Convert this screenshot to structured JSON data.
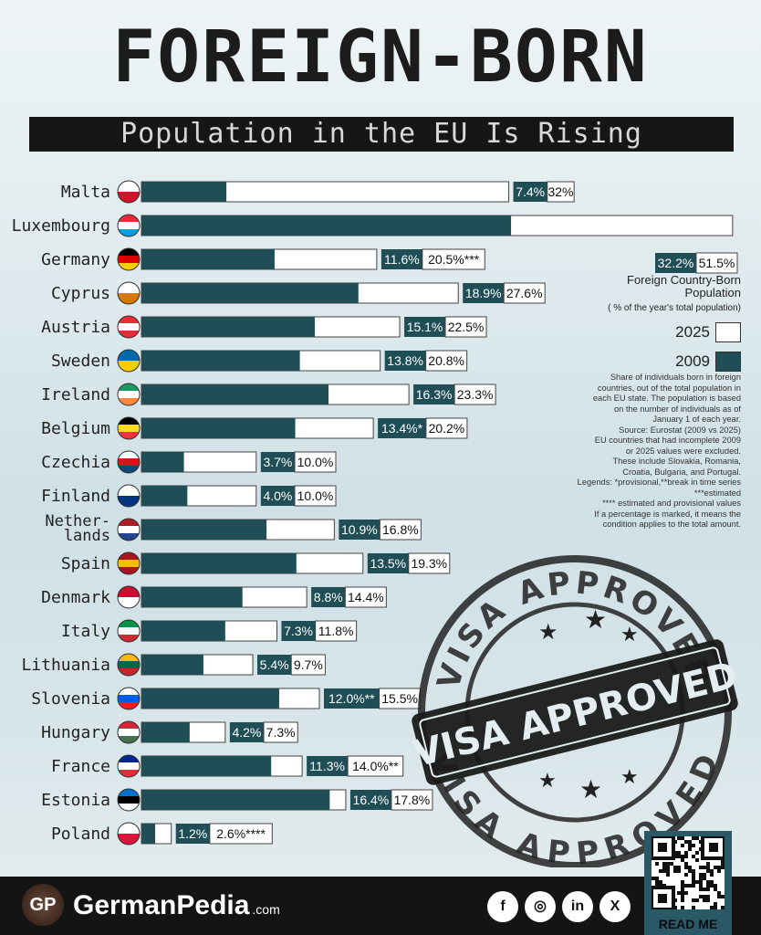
{
  "header": {
    "title": "FOREIGN-BORN",
    "subtitle": "Population in the EU Is Rising"
  },
  "chart_data": {
    "type": "bar",
    "orientation": "horizontal",
    "colors": {
      "2009": "#1f4e57",
      "2025": "#ffffff"
    },
    "categories": [
      "Malta",
      "Luxembourg",
      "Germany",
      "Cyprus",
      "Austria",
      "Sweden",
      "Ireland",
      "Belgium",
      "Czechia",
      "Finland",
      "Netherlands",
      "Spain",
      "Denmark",
      "Italy",
      "Lithuania",
      "Slovenia",
      "Hungary",
      "France",
      "Estonia",
      "Poland"
    ],
    "category_labels": [
      "Malta",
      "Luxembourg",
      "Germany",
      "Cyprus",
      "Austria",
      "Sweden",
      "Ireland",
      "Belgium",
      "Czechia",
      "Finland",
      "Nether-\nlands",
      "Spain",
      "Denmark",
      "Italy",
      "Lithuania",
      "Slovenia",
      "Hungary",
      "France",
      "Estonia",
      "Poland"
    ],
    "series": [
      {
        "name": "2009",
        "values": [
          7.4,
          32.2,
          11.6,
          18.9,
          15.1,
          13.8,
          16.3,
          13.4,
          3.7,
          4.0,
          10.9,
          13.5,
          8.8,
          7.3,
          5.4,
          12.0,
          4.2,
          11.3,
          16.4,
          1.2
        ]
      },
      {
        "name": "2025",
        "values": [
          32.0,
          51.5,
          20.5,
          27.6,
          22.5,
          20.8,
          23.3,
          20.2,
          10.0,
          10.0,
          16.8,
          19.3,
          14.4,
          11.8,
          9.7,
          15.5,
          7.3,
          14.0,
          17.8,
          2.6
        ]
      }
    ],
    "labels_2009": [
      "7.4%",
      "32.2%",
      "11.6%",
      "18.9%",
      "15.1%",
      "13.8%",
      "16.3%",
      "13.4%*",
      "3.7%",
      "4.0%",
      "10.9%",
      "13.5%",
      "8.8%",
      "7.3%",
      "5.4%",
      "12.0%**",
      "4.2%",
      "11.3%",
      "16.4%",
      "1.2%"
    ],
    "labels_2025": [
      "32%",
      "51.5%",
      "20.5%***",
      "27.6%",
      "22.5%",
      "20.8%",
      "23.3%",
      "20.2%",
      "10.0%",
      "10.0%",
      "16.8%",
      "19.3%",
      "14.4%",
      "11.8%",
      "9.7%",
      "15.5%",
      "7.3%",
      "14.0%**",
      "17.8%",
      "2.6%****"
    ],
    "flags": [
      [
        "#ffffff",
        "#cf142b"
      ],
      [
        "#ed2939",
        "#ffffff",
        "#00a1de"
      ],
      [
        "#000000",
        "#dd0000",
        "#ffce00"
      ],
      [
        "#ffffff",
        "#d57800"
      ],
      [
        "#ed2939",
        "#ffffff",
        "#ed2939"
      ],
      [
        "#006aa7",
        "#fecc00"
      ],
      [
        "#169b62",
        "#ffffff",
        "#ff883e"
      ],
      [
        "#000000",
        "#fdda24",
        "#ef3340"
      ],
      [
        "#ffffff",
        "#d7141a",
        "#11457e"
      ],
      [
        "#ffffff",
        "#003580"
      ],
      [
        "#ae1c28",
        "#ffffff",
        "#21468b"
      ],
      [
        "#aa151b",
        "#f1bf00",
        "#aa151b"
      ],
      [
        "#c8102e",
        "#ffffff"
      ],
      [
        "#009246",
        "#ffffff",
        "#ce2b37"
      ],
      [
        "#fdb913",
        "#006a44",
        "#c1272d"
      ],
      [
        "#ffffff",
        "#005ce5",
        "#ed1c24"
      ],
      [
        "#ce2939",
        "#ffffff",
        "#477050"
      ],
      [
        "#002395",
        "#ffffff",
        "#ed2939"
      ],
      [
        "#0072ce",
        "#000000",
        "#ffffff"
      ],
      [
        "#ffffff",
        "#dc143c"
      ]
    ]
  },
  "legend": {
    "title": "Foreign Country-Born Population",
    "subtitle": "( % of the year's total population)",
    "item_2025": "2025",
    "item_2009": "2009"
  },
  "notes": [
    "Share of individuals born in foreign",
    "countries, out of the total population in",
    "each EU state. The population is based",
    "on the number of individuals as of",
    "January 1 of each year.",
    "Source: Eurostat (2009 vs 2025)",
    "EU countries that had incomplete 2009",
    "or 2025 values were excluded.",
    "These include Slovakia, Romania,",
    "Croatia, Bulgaria, and Portugal.",
    "Legends: *provisional,**break in time series",
    "***estimated",
    "**** estimated and provisional values",
    "If a percentage is marked, it means the",
    "condition applies to the total amount."
  ],
  "stamp": {
    "ring_text": "VISA APPROVED",
    "center_text": "VISA APPROVED"
  },
  "footer": {
    "logo": "GP",
    "brand": "GermanPedia",
    "brand_suffix": ".com",
    "qr_label": "READ ME",
    "social_icons": [
      "facebook-icon",
      "instagram-icon",
      "linkedin-icon",
      "x-icon"
    ],
    "social_glyphs": [
      "f",
      "◎",
      "in",
      "X"
    ]
  }
}
